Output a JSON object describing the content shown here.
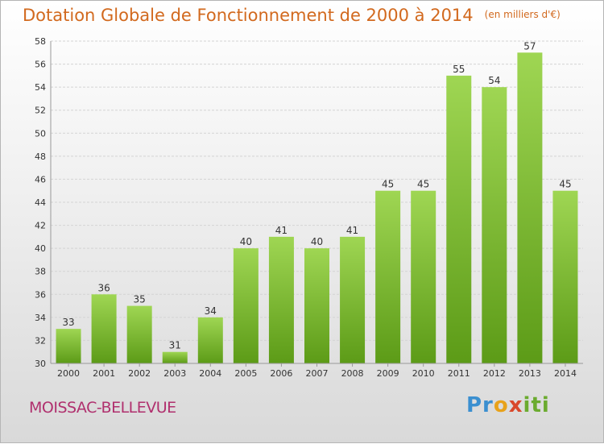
{
  "title": "Dotation Globale de Fonctionnement de 2000 à 2014",
  "unit": "(en milliers d'€)",
  "town": "MOISSAC-BELLEVUE",
  "logo": {
    "part1": "Pr",
    "part2": "o",
    "part3": "x",
    "part4": "iti"
  },
  "colors": {
    "bar_top": "#9fd653",
    "bar_bottom": "#5c9b17",
    "title": "#d2691e",
    "town": "#b0306e"
  },
  "chart_data": {
    "type": "bar",
    "title": "Dotation Globale de Fonctionnement de 2000 à 2014",
    "categories": [
      "2000",
      "2001",
      "2002",
      "2003",
      "2004",
      "2005",
      "2006",
      "2007",
      "2008",
      "2009",
      "2010",
      "2011",
      "2012",
      "2013",
      "2014"
    ],
    "values": [
      33,
      36,
      35,
      31,
      34,
      40,
      41,
      40,
      41,
      45,
      45,
      55,
      54,
      57,
      45
    ],
    "ylim": [
      30,
      58
    ],
    "yticks": [
      30,
      32,
      34,
      36,
      38,
      40,
      42,
      44,
      46,
      48,
      50,
      52,
      54,
      56,
      58
    ],
    "grid": true,
    "xlabel": "",
    "ylabel": ""
  }
}
